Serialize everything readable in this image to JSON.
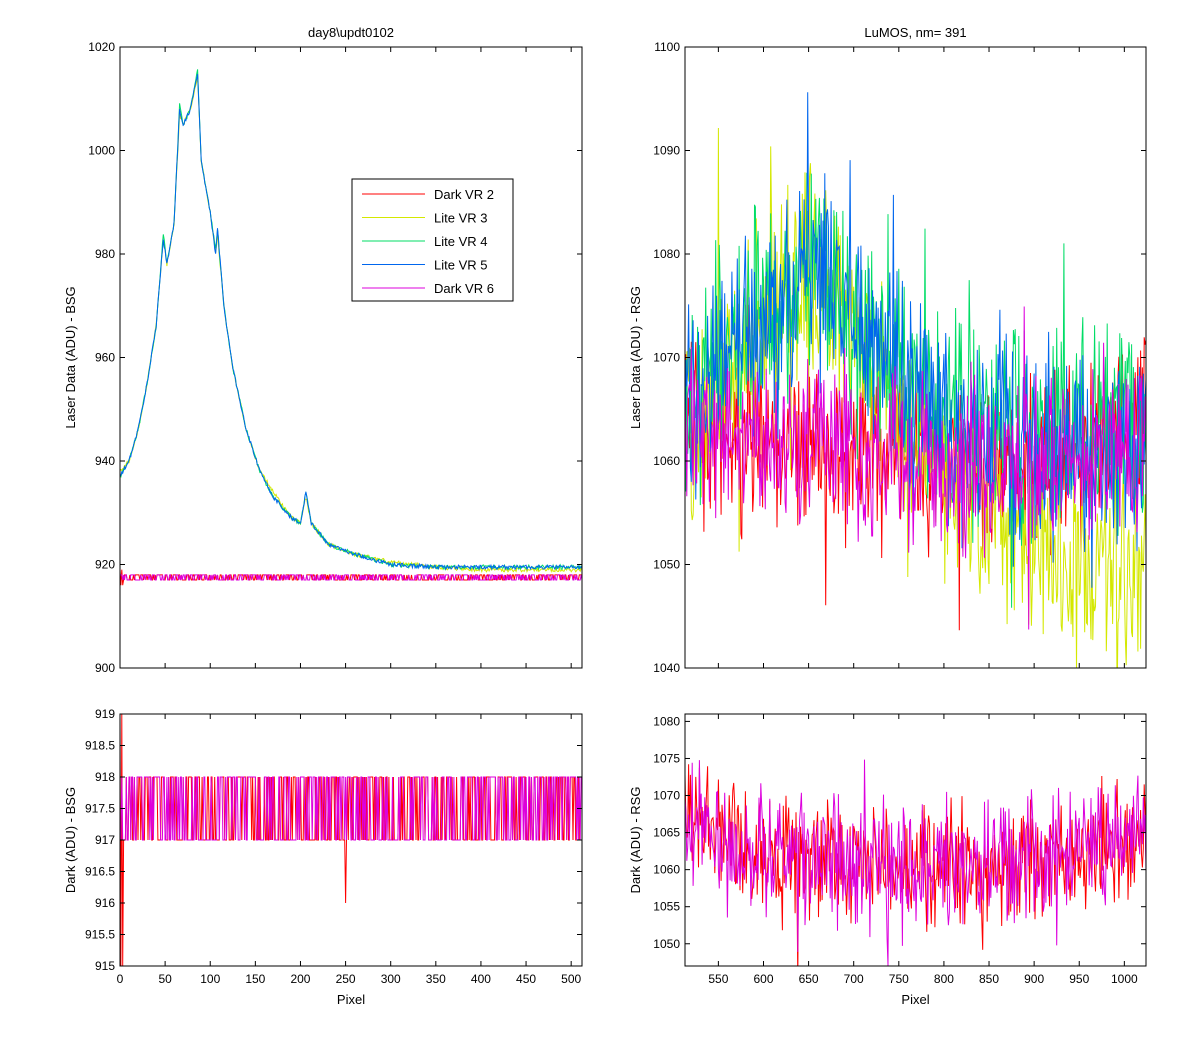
{
  "figure": {
    "background": "#ffffff",
    "axis_color": "#000000"
  },
  "series_colors": {
    "Dark VR 2": "#ff0000",
    "Lite VR 3": "#d4e800",
    "Lite VR 4": "#00dd66",
    "Lite VR 5": "#0066ee",
    "Dark VR 6": "#dd00dd"
  },
  "legend": {
    "entries": [
      "Dark VR 2",
      "Lite VR 3",
      "Lite VR 4",
      "Lite VR 5",
      "Dark VR 6"
    ],
    "placement": "inside-top-right of top-left panel"
  },
  "chart_data": [
    {
      "id": "top_left",
      "type": "line",
      "title": "day8\\updt0102",
      "xlabel": "",
      "ylabel": "Laser Data (ADU) - BSG",
      "xlim": [
        0,
        512
      ],
      "ylim": [
        900,
        1020
      ],
      "yticks": [
        900,
        920,
        940,
        960,
        980,
        1000,
        1020
      ],
      "xticks": [
        0,
        50,
        100,
        150,
        200,
        250,
        300,
        350,
        400,
        450,
        500
      ],
      "show_xtick_labels": false,
      "grid": false,
      "series": [
        {
          "name": "Dark VR 2",
          "dark_level": [
            917,
            918
          ],
          "description_points": [
            [
              0,
              918.5
            ],
            [
              512,
              917.5
            ]
          ]
        },
        {
          "name": "Lite VR 3",
          "points": [
            [
              0,
              938
            ],
            [
              10,
              940
            ],
            [
              20,
              946
            ],
            [
              30,
              955
            ],
            [
              40,
              966
            ],
            [
              48,
              983
            ],
            [
              52,
              978
            ],
            [
              60,
              986
            ],
            [
              66,
              1007
            ],
            [
              70,
              1005
            ],
            [
              78,
              1008
            ],
            [
              86,
              1014
            ],
            [
              90,
              998
            ],
            [
              100,
              988
            ],
            [
              106,
              980
            ],
            [
              108,
              984
            ],
            [
              115,
              970
            ],
            [
              125,
              958
            ],
            [
              140,
              946
            ],
            [
              155,
              938
            ],
            [
              170,
              934
            ],
            [
              190,
              929
            ],
            [
              200,
              928
            ],
            [
              206,
              933
            ],
            [
              212,
              928
            ],
            [
              230,
              924
            ],
            [
              260,
              922
            ],
            [
              300,
              920.5
            ],
            [
              350,
              919.5
            ],
            [
              400,
              919
            ],
            [
              450,
              919
            ],
            [
              512,
              919
            ]
          ]
        },
        {
          "name": "Lite VR 4",
          "points": [
            [
              0,
              937
            ],
            [
              10,
              940
            ],
            [
              20,
              946
            ],
            [
              30,
              955
            ],
            [
              40,
              966
            ],
            [
              48,
              984
            ],
            [
              52,
              978
            ],
            [
              60,
              986
            ],
            [
              66,
              1009
            ],
            [
              70,
              1005
            ],
            [
              78,
              1008
            ],
            [
              86,
              1016
            ],
            [
              90,
              998
            ],
            [
              100,
              988
            ],
            [
              106,
              981
            ],
            [
              108,
              985
            ],
            [
              115,
              970
            ],
            [
              125,
              958
            ],
            [
              140,
              946
            ],
            [
              155,
              938
            ],
            [
              170,
              933
            ],
            [
              190,
              929
            ],
            [
              200,
              928
            ],
            [
              206,
              934
            ],
            [
              212,
              928
            ],
            [
              230,
              924
            ],
            [
              260,
              922
            ],
            [
              300,
              920
            ],
            [
              350,
              919.5
            ],
            [
              400,
              919.5
            ],
            [
              450,
              919.5
            ],
            [
              512,
              919.5
            ]
          ]
        },
        {
          "name": "Lite VR 5",
          "points": [
            [
              0,
              937
            ],
            [
              10,
              940
            ],
            [
              20,
              946
            ],
            [
              30,
              955
            ],
            [
              40,
              966
            ],
            [
              48,
              983
            ],
            [
              52,
              978
            ],
            [
              60,
              986
            ],
            [
              66,
              1008
            ],
            [
              70,
              1005
            ],
            [
              78,
              1008
            ],
            [
              86,
              1015
            ],
            [
              90,
              998
            ],
            [
              100,
              988
            ],
            [
              106,
              980
            ],
            [
              108,
              985
            ],
            [
              115,
              970
            ],
            [
              125,
              958
            ],
            [
              140,
              946
            ],
            [
              155,
              938
            ],
            [
              170,
              933
            ],
            [
              190,
              929
            ],
            [
              200,
              928
            ],
            [
              206,
              934
            ],
            [
              212,
              928
            ],
            [
              230,
              924
            ],
            [
              260,
              922
            ],
            [
              300,
              920
            ],
            [
              350,
              919.5
            ],
            [
              400,
              919.5
            ],
            [
              450,
              919.5
            ],
            [
              512,
              919.5
            ]
          ]
        },
        {
          "name": "Dark VR 6",
          "dark_level": [
            917,
            918
          ]
        }
      ]
    },
    {
      "id": "top_right",
      "type": "line",
      "title": "LuMOS, nm= 391",
      "xlabel": "",
      "ylabel": "Laser Data (ADU) - RSG",
      "xlim": [
        513,
        1024
      ],
      "ylim": [
        1040,
        1100
      ],
      "yticks": [
        1040,
        1050,
        1060,
        1070,
        1080,
        1090,
        1100
      ],
      "xticks": [
        550,
        600,
        650,
        700,
        750,
        800,
        850,
        900,
        950,
        1000
      ],
      "show_xtick_labels": false,
      "grid": false,
      "series": [
        {
          "name": "Dark VR 2",
          "trend": [
            [
              513,
              1066
            ],
            [
              560,
              1062
            ],
            [
              620,
              1061
            ],
            [
              700,
              1061
            ],
            [
              800,
              1060
            ],
            [
              900,
              1060
            ],
            [
              1000,
              1062
            ],
            [
              1024,
              1063
            ]
          ],
          "noise": 4
        },
        {
          "name": "Lite VR 3",
          "trend": [
            [
              513,
              1064
            ],
            [
              560,
              1068
            ],
            [
              600,
              1072
            ],
            [
              650,
              1078
            ],
            [
              700,
              1072
            ],
            [
              750,
              1066
            ],
            [
              800,
              1060
            ],
            [
              850,
              1055
            ],
            [
              900,
              1052
            ],
            [
              950,
              1050
            ],
            [
              1000,
              1050
            ],
            [
              1024,
              1050
            ]
          ],
          "noise": 5
        },
        {
          "name": "Lite VR 4",
          "trend": [
            [
              513,
              1066
            ],
            [
              560,
              1070
            ],
            [
              600,
              1074
            ],
            [
              650,
              1079
            ],
            [
              700,
              1074
            ],
            [
              750,
              1069
            ],
            [
              800,
              1065
            ],
            [
              850,
              1063
            ],
            [
              900,
              1064
            ],
            [
              950,
              1064
            ],
            [
              1000,
              1063
            ],
            [
              1024,
              1064
            ]
          ],
          "noise": 5
        },
        {
          "name": "Lite VR 5",
          "trend": [
            [
              513,
              1066
            ],
            [
              560,
              1069
            ],
            [
              600,
              1074
            ],
            [
              650,
              1079
            ],
            [
              700,
              1074
            ],
            [
              750,
              1068
            ],
            [
              800,
              1064
            ],
            [
              850,
              1061
            ],
            [
              900,
              1061
            ],
            [
              950,
              1061
            ],
            [
              1000,
              1061
            ],
            [
              1024,
              1062
            ]
          ],
          "noise": 5
        },
        {
          "name": "Dark VR 6",
          "trend": [
            [
              513,
              1066
            ],
            [
              560,
              1062
            ],
            [
              620,
              1061
            ],
            [
              700,
              1061
            ],
            [
              800,
              1060
            ],
            [
              900,
              1060
            ],
            [
              1000,
              1062
            ],
            [
              1024,
              1063
            ]
          ],
          "noise": 4
        }
      ]
    },
    {
      "id": "bottom_left",
      "type": "line",
      "title": "",
      "xlabel": "Pixel",
      "ylabel": "Dark (ADU) - BSG",
      "xlim": [
        0,
        512
      ],
      "ylim": [
        915,
        919
      ],
      "yticks": [
        915,
        915.5,
        916,
        916.5,
        917,
        917.5,
        918,
        918.5,
        919
      ],
      "xticks": [
        0,
        50,
        100,
        150,
        200,
        250,
        300,
        350,
        400,
        450,
        500
      ],
      "grid": false,
      "series": [
        {
          "name": "Dark VR 2",
          "levels": [
            917,
            918
          ],
          "dip": [
            250,
            916
          ],
          "start_spike": [
            [
              1,
              919
            ],
            [
              3,
              915
            ]
          ]
        },
        {
          "name": "Dark VR 6",
          "levels": [
            917,
            918
          ]
        }
      ]
    },
    {
      "id": "bottom_right",
      "type": "line",
      "title": "",
      "xlabel": "Pixel",
      "ylabel": "Dark (ADU) - RSG",
      "xlim": [
        513,
        1024
      ],
      "ylim": [
        1047,
        1081
      ],
      "yticks": [
        1050,
        1055,
        1060,
        1065,
        1070,
        1075,
        1080
      ],
      "xticks": [
        550,
        600,
        650,
        700,
        750,
        800,
        850,
        900,
        950,
        1000
      ],
      "grid": false,
      "series": [
        {
          "name": "Dark VR 2",
          "trend": [
            [
              513,
              1067
            ],
            [
              560,
              1064
            ],
            [
              620,
              1062
            ],
            [
              700,
              1061
            ],
            [
              800,
              1060
            ],
            [
              900,
              1061
            ],
            [
              1000,
              1063
            ],
            [
              1024,
              1064
            ]
          ],
          "noise": 4
        },
        {
          "name": "Dark VR 6",
          "trend": [
            [
              513,
              1066
            ],
            [
              560,
              1063
            ],
            [
              620,
              1062
            ],
            [
              700,
              1061
            ],
            [
              800,
              1060
            ],
            [
              900,
              1061
            ],
            [
              1000,
              1063
            ],
            [
              1024,
              1064
            ]
          ],
          "noise": 4
        }
      ]
    }
  ]
}
